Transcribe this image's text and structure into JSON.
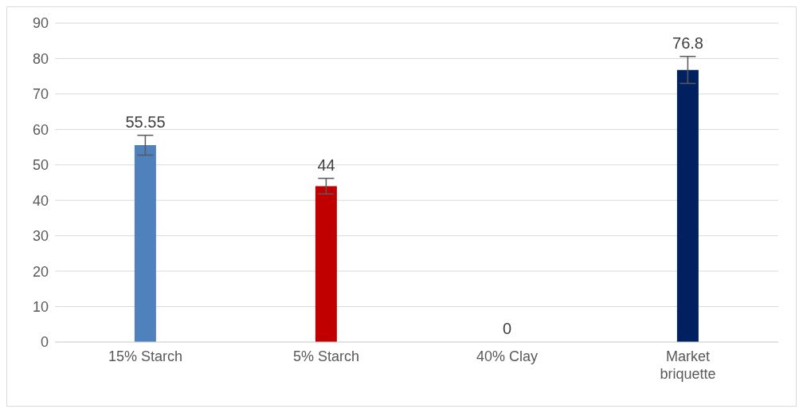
{
  "chart_data": {
    "type": "bar",
    "categories": [
      "15% Starch",
      "5% Starch",
      "40% Clay",
      "Market briquette"
    ],
    "values": [
      55.55,
      44,
      0,
      76.8
    ],
    "colors": [
      "#4f81bd",
      "#c00000",
      "#a5a5a5",
      "#002060"
    ],
    "errors": [
      2.8,
      2.2,
      null,
      3.8
    ],
    "ylim": [
      0,
      90
    ],
    "yticks": [
      0,
      10,
      20,
      30,
      40,
      50,
      60,
      70,
      80,
      90
    ],
    "grid": "y",
    "data_labels": true
  }
}
